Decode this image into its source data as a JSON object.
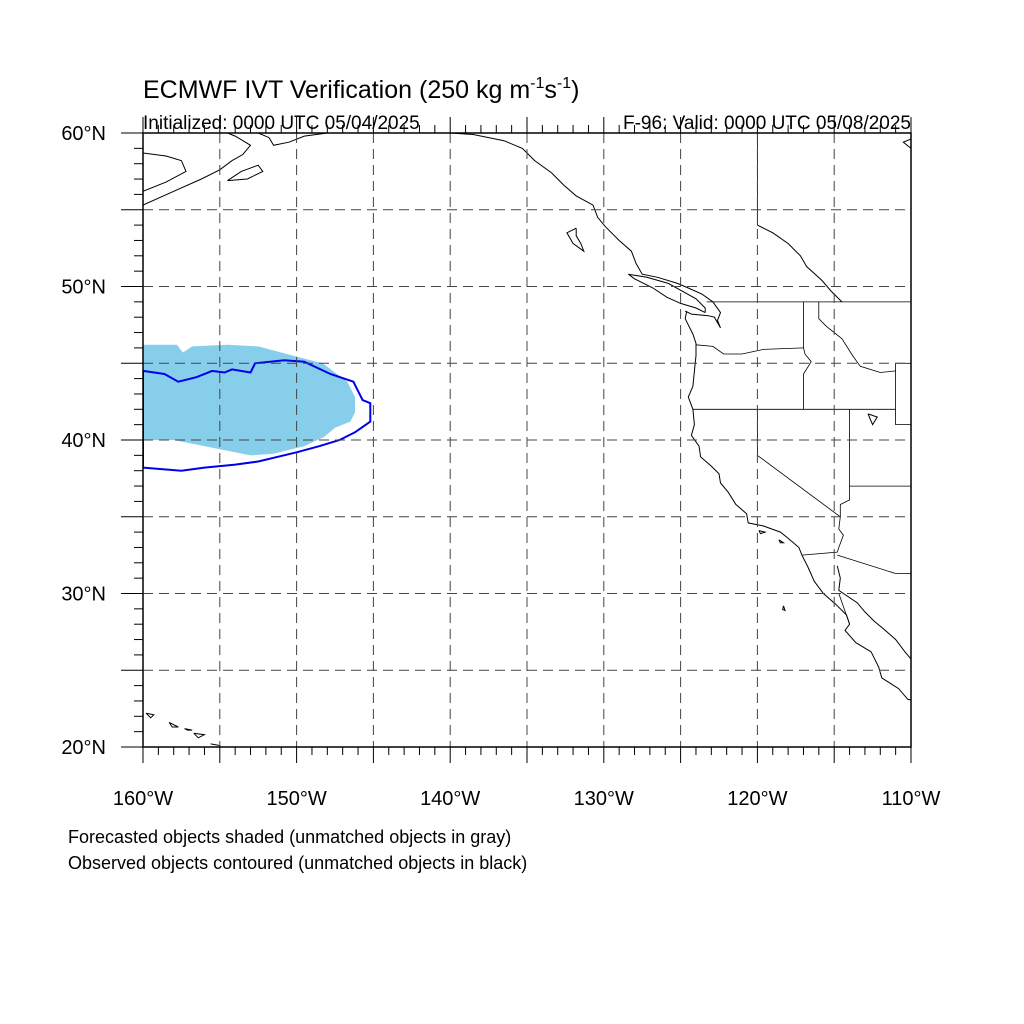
{
  "header": {
    "title_main": "ECMWF IVT Verification (250 kg m",
    "title_sup1": "-1",
    "title_mid": "s",
    "title_sup2": "-1",
    "title_end": ")",
    "initialized": "Initialized: 0000 UTC 05/04/2025",
    "valid": "F-96: Valid: 0000 UTC 05/08/2025"
  },
  "map": {
    "lon_range": [
      -160,
      -110
    ],
    "lat_range": [
      20,
      60
    ],
    "lon_labels": [
      {
        "lon": -160,
        "text": "160°W"
      },
      {
        "lon": -150,
        "text": "150°W"
      },
      {
        "lon": -140,
        "text": "140°W"
      },
      {
        "lon": -130,
        "text": "130°W"
      },
      {
        "lon": -120,
        "text": "120°W"
      },
      {
        "lon": -110,
        "text": "110°W"
      }
    ],
    "lat_labels": [
      {
        "lat": 60,
        "text": "60°N"
      },
      {
        "lat": 50,
        "text": "50°N"
      },
      {
        "lat": 40,
        "text": "40°N"
      },
      {
        "lat": 30,
        "text": "30°N"
      },
      {
        "lat": 20,
        "text": "20°N"
      }
    ],
    "grid_lons": [
      -155,
      -150,
      -145,
      -140,
      -135,
      -130,
      -125,
      -120,
      -115
    ],
    "grid_lats": [
      55,
      50,
      45,
      40,
      35,
      30,
      25
    ],
    "colors": {
      "forecast_fill": "#87ceeb",
      "observed_contour": "#0000ee",
      "coast": "#000000",
      "grid": "#444444"
    },
    "forecast_object": [
      [
        -160,
        46.2
      ],
      [
        -157.8,
        46.2
      ],
      [
        -157.4,
        45.7
      ],
      [
        -156.8,
        46.1
      ],
      [
        -154.5,
        46.2
      ],
      [
        -152.5,
        46.1
      ],
      [
        -149.5,
        45.3
      ],
      [
        -148.3,
        45
      ],
      [
        -146.7,
        43.8
      ],
      [
        -146.2,
        42.8
      ],
      [
        -146.2,
        41.8
      ],
      [
        -146.5,
        41.2
      ],
      [
        -147.5,
        40.8
      ],
      [
        -148.2,
        40.2
      ],
      [
        -149.5,
        39.6
      ],
      [
        -151.5,
        39.1
      ],
      [
        -153,
        39.0
      ],
      [
        -154.5,
        39.3
      ],
      [
        -156,
        39.6
      ],
      [
        -158,
        40.0
      ],
      [
        -160,
        40.0
      ]
    ],
    "observed_object": [
      [
        -160,
        44.5
      ],
      [
        -158.6,
        44.3
      ],
      [
        -157.7,
        43.8
      ],
      [
        -156.5,
        44.1
      ],
      [
        -155.5,
        44.5
      ],
      [
        -154.7,
        44.4
      ],
      [
        -154.2,
        44.6
      ],
      [
        -153,
        44.4
      ],
      [
        -152.7,
        45.0
      ],
      [
        -150.8,
        45.2
      ],
      [
        -149.5,
        45.1
      ],
      [
        -147.8,
        44.3
      ],
      [
        -146.3,
        43.8
      ],
      [
        -145.7,
        42.6
      ],
      [
        -145.2,
        42.4
      ],
      [
        -145.2,
        41.2
      ],
      [
        -146.2,
        40.5
      ],
      [
        -147.2,
        40
      ],
      [
        -148.5,
        39.6
      ],
      [
        -150,
        39.2
      ],
      [
        -152.5,
        38.6
      ],
      [
        -154,
        38.4
      ],
      [
        -156,
        38.2
      ],
      [
        -157.5,
        38.0
      ],
      [
        -160,
        38.2
      ]
    ],
    "coastlines": [
      [
        [
          -124.6,
          48.4
        ],
        [
          -124.7,
          47.9
        ],
        [
          -124.2,
          46.9
        ],
        [
          -124.0,
          46.3
        ],
        [
          -124.0,
          45.5
        ],
        [
          -124.1,
          44.5
        ],
        [
          -124.2,
          43.5
        ],
        [
          -124.5,
          42.8
        ],
        [
          -124.2,
          42.0
        ],
        [
          -124.1,
          41.0
        ],
        [
          -124.3,
          40.3
        ],
        [
          -123.8,
          39.6
        ],
        [
          -123.7,
          38.9
        ],
        [
          -123.0,
          38.3
        ],
        [
          -122.5,
          37.8
        ],
        [
          -122.4,
          37.2
        ],
        [
          -121.9,
          36.6
        ],
        [
          -121.4,
          35.8
        ],
        [
          -120.7,
          35.2
        ],
        [
          -120.6,
          34.6
        ],
        [
          -119.6,
          34.4
        ],
        [
          -118.5,
          34.0
        ],
        [
          -118.0,
          33.6
        ],
        [
          -117.3,
          33.0
        ],
        [
          -117.1,
          32.5
        ],
        [
          -116.7,
          31.7
        ],
        [
          -116.3,
          30.8
        ],
        [
          -115.7,
          30.0
        ],
        [
          -114.9,
          29.3
        ],
        [
          -114.2,
          28.6
        ],
        [
          -114.0,
          28.0
        ],
        [
          -114.3,
          27.6
        ],
        [
          -113.6,
          26.8
        ],
        [
          -112.6,
          26.2
        ],
        [
          -112.1,
          25.2
        ],
        [
          -111.9,
          24.5
        ],
        [
          -110.8,
          23.8
        ],
        [
          -110.2,
          23.1
        ],
        [
          -109.5,
          23.0
        ]
      ],
      [
        [
          -114.8,
          31.8
        ],
        [
          -114.6,
          31.0
        ],
        [
          -114.7,
          30.2
        ],
        [
          -113.5,
          29.4
        ],
        [
          -113.0,
          28.8
        ],
        [
          -112.4,
          28.2
        ],
        [
          -111.8,
          27.7
        ],
        [
          -111.0,
          27.0
        ],
        [
          -110.4,
          26.2
        ],
        [
          -109.8,
          25.5
        ],
        [
          -109.2,
          24.8
        ]
      ],
      [
        [
          -124.7,
          48.4
        ],
        [
          -124.3,
          48.2
        ],
        [
          -123.2,
          48.1
        ],
        [
          -122.8,
          48.0
        ],
        [
          -122.4,
          47.3
        ],
        [
          -122.6,
          47.8
        ],
        [
          -122.4,
          48.3
        ],
        [
          -122.9,
          49.0
        ],
        [
          -123.6,
          49.5
        ],
        [
          -124.5,
          49.9
        ],
        [
          -125.2,
          50.2
        ],
        [
          -126.5,
          50.6
        ],
        [
          -127.5,
          50.8
        ],
        [
          -127.9,
          51.5
        ],
        [
          -128.2,
          52.3
        ],
        [
          -129.0,
          53.0
        ],
        [
          -129.9,
          53.9
        ],
        [
          -130.4,
          54.5
        ],
        [
          -130.7,
          55.3
        ],
        [
          -131.8,
          55.9
        ],
        [
          -132.6,
          56.6
        ],
        [
          -133.4,
          57.4
        ],
        [
          -134.5,
          58.2
        ],
        [
          -135.3,
          59.0
        ],
        [
          -136.5,
          59.5
        ],
        [
          -138.5,
          59.9
        ],
        [
          -140.0,
          60.0
        ]
      ],
      [
        [
          -123.4,
          48.3
        ],
        [
          -124.0,
          48.6
        ],
        [
          -125.0,
          48.9
        ],
        [
          -125.9,
          49.3
        ],
        [
          -126.8,
          49.9
        ],
        [
          -128.0,
          50.5
        ],
        [
          -128.4,
          50.8
        ],
        [
          -127.2,
          50.6
        ],
        [
          -125.8,
          50.2
        ],
        [
          -124.9,
          49.7
        ],
        [
          -124.0,
          49.2
        ],
        [
          -123.4,
          48.6
        ],
        [
          -123.4,
          48.3
        ]
      ],
      [
        [
          -131.8,
          53.8
        ],
        [
          -132.4,
          53.5
        ],
        [
          -132.0,
          52.8
        ],
        [
          -131.3,
          52.3
        ],
        [
          -131.5,
          52.8
        ],
        [
          -131.8,
          53.3
        ],
        [
          -131.8,
          53.8
        ]
      ],
      [
        [
          -148.0,
          60.0
        ],
        [
          -149.5,
          59.8
        ],
        [
          -150.5,
          59.4
        ],
        [
          -151.5,
          59.2
        ],
        [
          -151.8,
          59.7
        ],
        [
          -152.5,
          60.0
        ]
      ],
      [
        [
          -160.0,
          58.7
        ],
        [
          -158.5,
          58.5
        ],
        [
          -157.5,
          58.2
        ],
        [
          -157.2,
          57.5
        ],
        [
          -158.5,
          56.8
        ],
        [
          -160.0,
          56.2
        ],
        [
          -160.0,
          55.3
        ],
        [
          -158.0,
          56.2
        ],
        [
          -156.2,
          57.0
        ],
        [
          -155.0,
          57.6
        ],
        [
          -154.2,
          58.2
        ],
        [
          -153.5,
          58.6
        ],
        [
          -153.0,
          59.2
        ],
        [
          -154.0,
          59.8
        ],
        [
          -154.5,
          60.0
        ]
      ],
      [
        [
          -154.5,
          56.9
        ],
        [
          -153.6,
          57.5
        ],
        [
          -152.5,
          57.9
        ],
        [
          -152.2,
          57.5
        ],
        [
          -153.2,
          57.0
        ],
        [
          -154.5,
          56.9
        ]
      ],
      [
        [
          -155.6,
          20.0
        ],
        [
          -155.0,
          19.6
        ],
        [
          -155.0,
          20.1
        ],
        [
          -155.6,
          20.2
        ]
      ],
      [
        [
          -156.7,
          20.9
        ],
        [
          -156.0,
          20.8
        ],
        [
          -156.4,
          20.6
        ],
        [
          -156.7,
          20.9
        ]
      ],
      [
        [
          -157.3,
          21.2
        ],
        [
          -156.8,
          21.1
        ],
        [
          -157.1,
          21.1
        ],
        [
          -157.3,
          21.2
        ]
      ],
      [
        [
          -158.3,
          21.6
        ],
        [
          -157.7,
          21.3
        ],
        [
          -158.1,
          21.3
        ],
        [
          -158.3,
          21.6
        ]
      ],
      [
        [
          -159.8,
          22.2
        ],
        [
          -159.3,
          22.1
        ],
        [
          -159.5,
          21.9
        ],
        [
          -159.8,
          22.2
        ]
      ],
      [
        [
          -119.9,
          34.1
        ],
        [
          -119.5,
          34.0
        ],
        [
          -119.8,
          33.9
        ],
        [
          -119.9,
          34.1
        ]
      ],
      [
        [
          -118.6,
          33.5
        ],
        [
          -118.3,
          33.3
        ],
        [
          -118.5,
          33.3
        ],
        [
          -118.6,
          33.5
        ]
      ],
      [
        [
          -118.3,
          29.2
        ],
        [
          -118.2,
          28.9
        ],
        [
          -118.35,
          28.95
        ],
        [
          -118.3,
          29.2
        ]
      ],
      [
        [
          -112.8,
          41.7
        ],
        [
          -112.2,
          41.5
        ],
        [
          -112.5,
          41.0
        ],
        [
          -112.8,
          41.7
        ]
      ],
      [
        [
          -110.0,
          59.0
        ],
        [
          -110.5,
          59.4
        ],
        [
          -110.0,
          59.6
        ]
      ],
      [
        [
          -120.0,
          54.0
        ],
        [
          -119.0,
          53.5
        ],
        [
          -118.0,
          52.8
        ],
        [
          -117.2,
          52.0
        ],
        [
          -116.8,
          51.3
        ],
        [
          -115.8,
          50.4
        ],
        [
          -115.2,
          49.7
        ],
        [
          -114.5,
          49.0
        ]
      ]
    ],
    "borders": [
      [
        [
          -123.3,
          49.0
        ],
        [
          -110.0,
          49.0
        ]
      ],
      [
        [
          -120.0,
          60.0
        ],
        [
          -120.0,
          54.0
        ]
      ],
      [
        [
          -117.0,
          49.0
        ],
        [
          -117.0,
          46.0
        ],
        [
          -116.9,
          45.6
        ],
        [
          -116.5,
          45.1
        ],
        [
          -117.0,
          44.3
        ],
        [
          -117.0,
          42.0
        ]
      ],
      [
        [
          -124.0,
          46.2
        ],
        [
          -122.9,
          46.1
        ],
        [
          -122.2,
          45.6
        ],
        [
          -121.0,
          45.6
        ],
        [
          -119.6,
          45.9
        ],
        [
          -117.0,
          46.0
        ]
      ],
      [
        [
          -124.2,
          42.0
        ],
        [
          -111.0,
          42.0
        ]
      ],
      [
        [
          -120.0,
          42.0
        ],
        [
          -120.0,
          39.0
        ],
        [
          -114.6,
          35.0
        ]
      ],
      [
        [
          -114.0,
          42.0
        ],
        [
          -114.0,
          36.1
        ],
        [
          -114.6,
          35.8
        ],
        [
          -114.6,
          35.0
        ]
      ],
      [
        [
          -114.6,
          35.0
        ],
        [
          -114.7,
          34.2
        ],
        [
          -114.4,
          33.8
        ],
        [
          -114.7,
          33.0
        ],
        [
          -114.8,
          32.7
        ],
        [
          -117.1,
          32.5
        ]
      ],
      [
        [
          -114.8,
          32.5
        ],
        [
          -111.0,
          31.3
        ],
        [
          -110.0,
          31.3
        ]
      ],
      [
        [
          -114.0,
          37.0
        ],
        [
          -110.0,
          37.0
        ]
      ],
      [
        [
          -111.0,
          45.0
        ],
        [
          -110.0,
          45.0
        ]
      ],
      [
        [
          -111.0,
          45.0
        ],
        [
          -111.0,
          41.0
        ],
        [
          -110.0,
          41.0
        ]
      ],
      [
        [
          -116.0,
          49.0
        ],
        [
          -116.0,
          47.9
        ],
        [
          -115.5,
          47.4
        ],
        [
          -114.5,
          46.6
        ],
        [
          -113.8,
          45.5
        ],
        [
          -113.3,
          44.8
        ],
        [
          -112.0,
          44.4
        ],
        [
          -111.0,
          44.5
        ]
      ],
      [
        [
          -114.7,
          30.0
        ],
        [
          -114.0,
          28.0
        ]
      ]
    ]
  },
  "footer": {
    "line1": "Forecasted objects shaded (unmatched objects in gray)",
    "line2": "Observed objects contoured (unmatched objects in black)"
  }
}
